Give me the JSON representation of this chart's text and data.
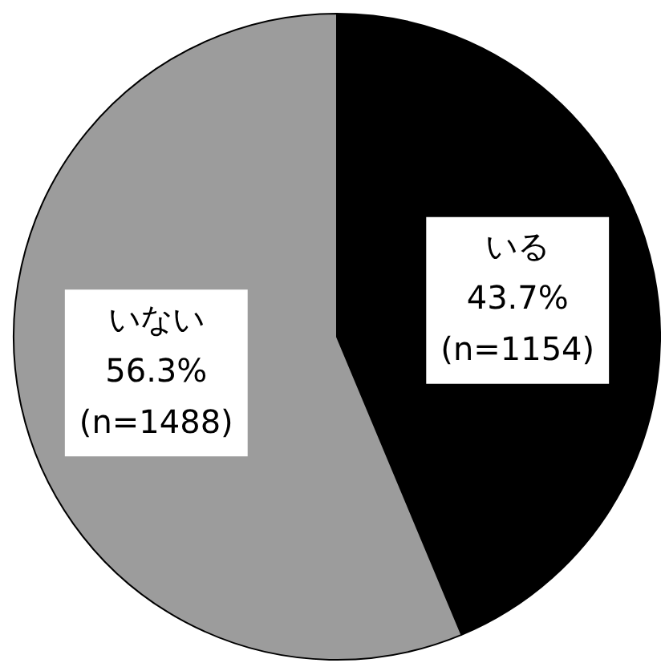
{
  "chart_data": {
    "type": "pie",
    "categories": [
      "いる",
      "いない"
    ],
    "values": [
      43.7,
      56.3
    ],
    "colors": [
      "#000000",
      "#9c9c9c"
    ],
    "value_labels": [
      "43.7%\n(n=1154)",
      "56.3%\n(n=1488)"
    ],
    "legend": false
  }
}
